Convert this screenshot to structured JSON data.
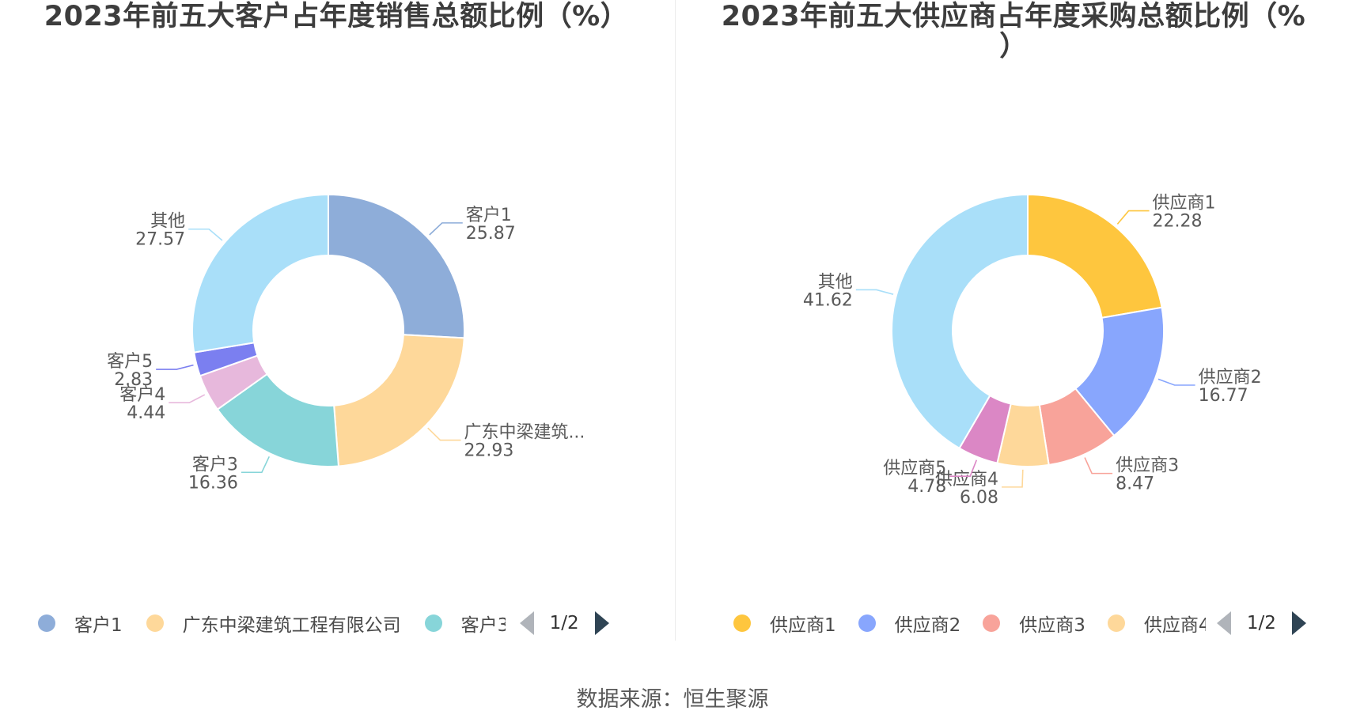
{
  "source": "数据来源：恒生聚源",
  "chart_data": [
    {
      "type": "pie",
      "title": "2023年前五大客户占年度销售总额比例（%）",
      "donut": true,
      "slices": [
        {
          "label": "客户1",
          "value": 25.87,
          "color": "#8eadd9",
          "value_label": "25.87",
          "name_label": "客户1"
        },
        {
          "label": "广东中梁建筑工程有限公司",
          "value": 22.93,
          "color": "#fed89a",
          "value_label": "22.93",
          "name_label": "广东中梁建筑..."
        },
        {
          "label": "客户3",
          "value": 16.36,
          "color": "#87d5d9",
          "value_label": "16.36",
          "name_label": "客户3"
        },
        {
          "label": "客户4",
          "value": 4.44,
          "color": "#e7b8dc",
          "value_label": "4.44",
          "name_label": "客户4"
        },
        {
          "label": "客户5",
          "value": 2.83,
          "color": "#7b7ff0",
          "value_label": "2.83",
          "name_label": "客户5"
        },
        {
          "label": "其他",
          "value": 27.57,
          "color": "#a9dff9",
          "value_label": "27.57",
          "name_label": "其他"
        }
      ],
      "legend": {
        "items": [
          {
            "label": "客户1",
            "color": "#8eadd9"
          },
          {
            "label": "广东中梁建筑工程有限公司",
            "color": "#fed89a"
          },
          {
            "label": "客户3",
            "color": "#87d5d9"
          }
        ],
        "page": "1/2"
      }
    },
    {
      "type": "pie",
      "title_line1": "2023年前五大供应商占年度采购总额比例（%",
      "title_line2": "）",
      "donut": true,
      "slices": [
        {
          "label": "供应商1",
          "value": 22.28,
          "color": "#fec63e",
          "value_label": "22.28",
          "name_label": "供应商1"
        },
        {
          "label": "供应商2",
          "value": 16.77,
          "color": "#88a6fd",
          "value_label": "16.77",
          "name_label": "供应商2"
        },
        {
          "label": "供应商3",
          "value": 8.47,
          "color": "#f8a39a",
          "value_label": "8.47",
          "name_label": "供应商3"
        },
        {
          "label": "供应商4",
          "value": 6.08,
          "color": "#fed89a",
          "value_label": "6.08",
          "name_label": "供应商4"
        },
        {
          "label": "供应商5",
          "value": 4.78,
          "color": "#db87c5",
          "value_label": "4.78",
          "name_label": "供应商5"
        },
        {
          "label": "其他",
          "value": 41.62,
          "color": "#a9dff9",
          "value_label": "41.62",
          "name_label": "其他"
        }
      ],
      "legend": {
        "items": [
          {
            "label": "供应商1",
            "color": "#fec63e"
          },
          {
            "label": "供应商2",
            "color": "#88a6fd"
          },
          {
            "label": "供应商3",
            "color": "#f8a39a"
          },
          {
            "label": "供应商4",
            "color": "#fed89a"
          }
        ],
        "page": "1/2"
      }
    }
  ]
}
